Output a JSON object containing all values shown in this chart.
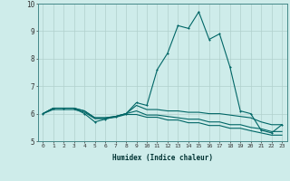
{
  "title": "",
  "xlabel": "Humidex (Indice chaleur)",
  "ylabel": "",
  "bg_color": "#ceecea",
  "grid_color": "#b0d0cc",
  "line_color": "#006666",
  "x_values": [
    0,
    1,
    2,
    3,
    4,
    5,
    6,
    7,
    8,
    9,
    10,
    11,
    12,
    13,
    14,
    15,
    16,
    17,
    18,
    19,
    20,
    21,
    22,
    23
  ],
  "line1": [
    6.0,
    6.2,
    6.2,
    6.2,
    6.0,
    5.7,
    5.8,
    5.9,
    6.0,
    6.4,
    6.3,
    7.6,
    8.2,
    9.2,
    9.1,
    9.7,
    8.7,
    8.9,
    7.7,
    6.1,
    6.0,
    5.4,
    5.3,
    5.6
  ],
  "line2": [
    6.0,
    6.2,
    6.2,
    6.2,
    6.1,
    5.85,
    5.85,
    5.9,
    6.0,
    6.3,
    6.15,
    6.15,
    6.1,
    6.1,
    6.05,
    6.05,
    6.0,
    6.0,
    5.95,
    5.9,
    5.85,
    5.7,
    5.6,
    5.6
  ],
  "line3": [
    6.0,
    6.2,
    6.2,
    6.2,
    6.1,
    5.85,
    5.85,
    5.9,
    6.0,
    6.1,
    5.95,
    5.95,
    5.9,
    5.85,
    5.8,
    5.8,
    5.7,
    5.7,
    5.6,
    5.6,
    5.5,
    5.45,
    5.35,
    5.35
  ],
  "line4": [
    6.0,
    6.15,
    6.15,
    6.15,
    6.05,
    5.82,
    5.82,
    5.87,
    5.97,
    5.97,
    5.87,
    5.87,
    5.77,
    5.77,
    5.67,
    5.67,
    5.57,
    5.57,
    5.47,
    5.47,
    5.38,
    5.3,
    5.22,
    5.22
  ],
  "ylim": [
    5.0,
    10.0
  ],
  "xlim": [
    -0.5,
    23.5
  ],
  "yticks": [
    5,
    6,
    7,
    8,
    9,
    10
  ],
  "xticks": [
    0,
    1,
    2,
    3,
    4,
    5,
    6,
    7,
    8,
    9,
    10,
    11,
    12,
    13,
    14,
    15,
    16,
    17,
    18,
    19,
    20,
    21,
    22,
    23
  ],
  "xtick_labels": [
    "0",
    "1",
    "2",
    "3",
    "4",
    "5",
    "6",
    "7",
    "8",
    "9",
    "10",
    "11",
    "12",
    "13",
    "14",
    "15",
    "16",
    "17",
    "18",
    "19",
    "20",
    "21",
    "22",
    "23"
  ]
}
